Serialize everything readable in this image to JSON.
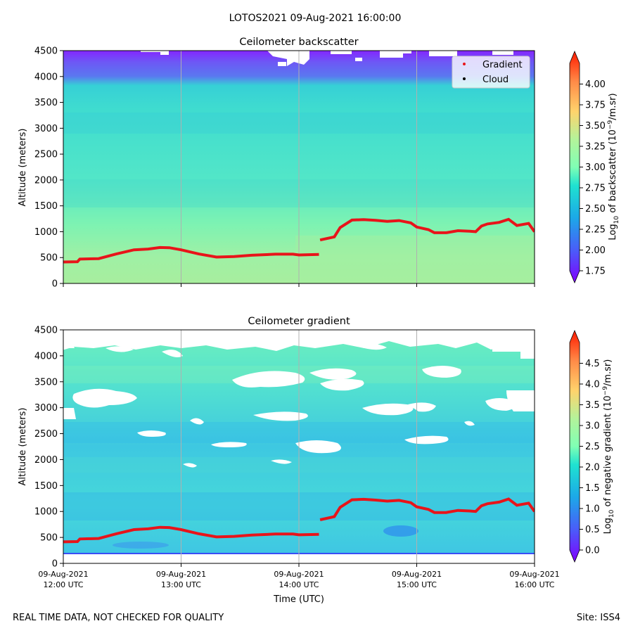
{
  "figure": {
    "suptitle": "LOTOS2021 09-Aug-2021 16:00:00",
    "footer_left": "REAL TIME DATA, NOT CHECKED FOR QUALITY",
    "footer_right": "Site: ISS4"
  },
  "chart_data": [
    {
      "type": "heatmap",
      "title": "Ceilometer backscatter",
      "ylabel": "Altitude (meters)",
      "xlabel": "",
      "ylim": [
        0,
        4500
      ],
      "yticks": [
        0,
        500,
        1000,
        1500,
        2000,
        2500,
        3000,
        3500,
        4000,
        4500
      ],
      "xlim_hours_utc": [
        12,
        16
      ],
      "grid": "vertical gridlines at each hour",
      "colorbar": {
        "label": "Log10 of backscatter (10^-9/m.sr)",
        "range": [
          1.75,
          4.25
        ],
        "ticks": [
          "1.75",
          "2.00",
          "2.25",
          "2.50",
          "2.75",
          "3.00",
          "3.25",
          "3.50",
          "3.75",
          "4.00"
        ],
        "colormap": "rainbow"
      },
      "legend": {
        "location": "top-right",
        "entries": [
          {
            "label": "Gradient",
            "marker": "red dot",
            "color": "#e8141a"
          },
          {
            "label": "Cloud",
            "marker": "black dot",
            "color": "#000000"
          }
        ]
      },
      "field_description": "bands of decreasing value with altitude: ~2.9 near surface, ~2.75 up to 3800 m, ~2.2 above 4000 m with gaps near 4500 m"
    },
    {
      "type": "heatmap",
      "title": "Ceilometer gradient",
      "ylabel": "Altitude (meters)",
      "xlabel": "Time (UTC)",
      "ylim": [
        0,
        4500
      ],
      "yticks": [
        0,
        500,
        1000,
        1500,
        2000,
        2500,
        3000,
        3500,
        4000,
        4500
      ],
      "xticks": [
        {
          "hour": 12,
          "line1": "09-Aug-2021",
          "line2": "12:00 UTC"
        },
        {
          "hour": 13,
          "line1": "09-Aug-2021",
          "line2": "13:00 UTC"
        },
        {
          "hour": 14,
          "line1": "09-Aug-2021",
          "line2": "14:00 UTC"
        },
        {
          "hour": 15,
          "line1": "09-Aug-2021",
          "line2": "15:00 UTC"
        },
        {
          "hour": 16,
          "line1": "09-Aug-2021",
          "line2": "16:00 UTC"
        }
      ],
      "grid": "vertical gridlines at each hour",
      "colorbar": {
        "label": "Log10 of negative gradient (10^-9/m.sr)",
        "range": [
          0,
          5
        ],
        "ticks": [
          "0.0",
          "0.5",
          "1.0",
          "1.5",
          "2.0",
          "2.5",
          "3.0",
          "3.5",
          "4.0",
          "4.5"
        ],
        "colormap": "rainbow"
      },
      "field_description": "patchy 1.0-2.2 values with many white no-data patches between 1800 and 4500 m"
    }
  ],
  "gradient_series": {
    "name": "Gradient (boundary layer height)",
    "color": "#e8141a",
    "x_hours_utc": [
      12.0,
      12.12,
      12.14,
      12.3,
      12.45,
      12.6,
      12.72,
      12.82,
      12.9,
      13.0,
      13.15,
      13.3,
      13.45,
      13.6,
      13.8,
      13.95,
      14.0,
      14.17,
      14.18,
      14.3,
      14.35,
      14.45,
      14.55,
      14.65,
      14.75,
      14.85,
      14.95,
      15.0,
      15.1,
      15.15,
      15.25,
      15.35,
      15.45,
      15.5,
      15.55,
      15.6,
      15.7,
      15.78,
      15.85,
      15.95,
      16.0
    ],
    "y_meters": [
      415,
      420,
      470,
      480,
      570,
      650,
      665,
      695,
      690,
      650,
      570,
      510,
      520,
      545,
      565,
      565,
      550,
      560,
      840,
      900,
      1080,
      1225,
      1235,
      1220,
      1200,
      1215,
      1170,
      1090,
      1040,
      980,
      980,
      1020,
      1010,
      1000,
      1110,
      1150,
      1180,
      1240,
      1120,
      1160,
      1000
    ],
    "break_after_index": 17
  }
}
